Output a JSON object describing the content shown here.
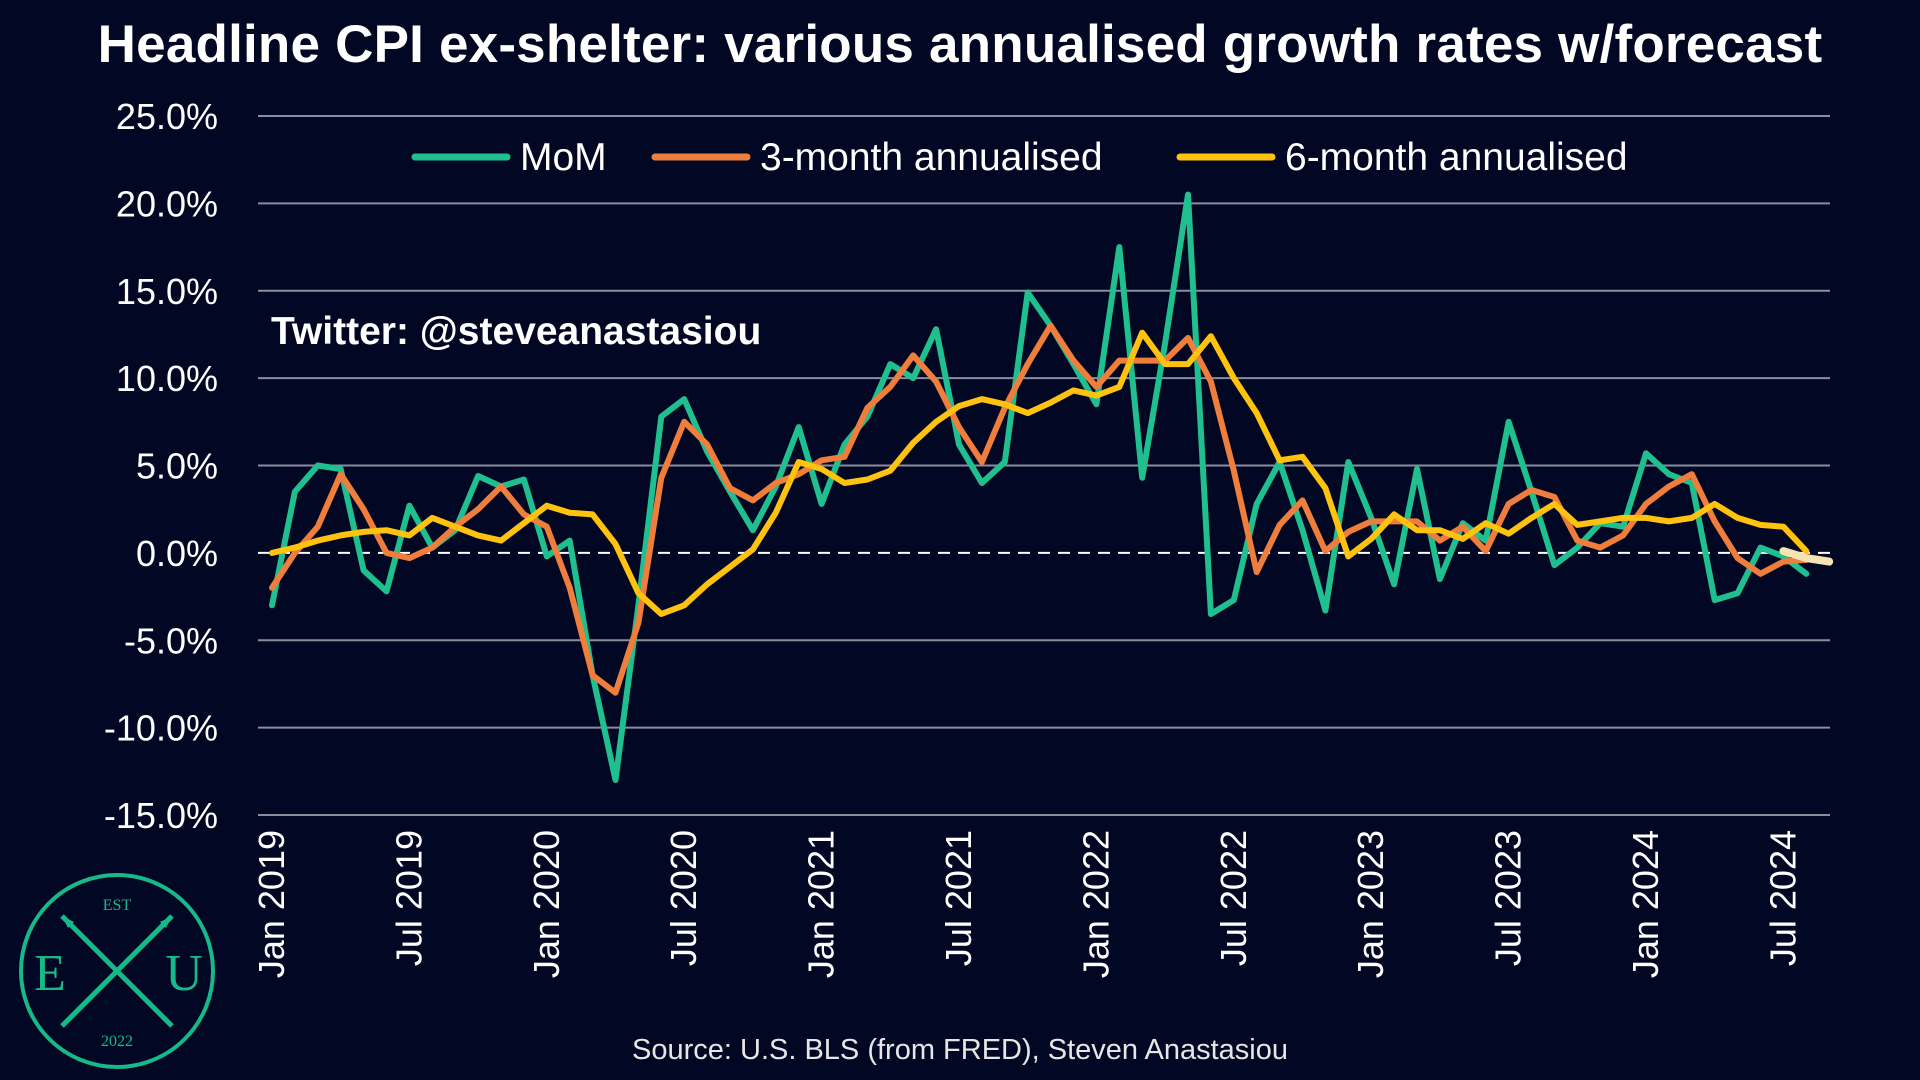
{
  "title": "Headline CPI ex-shelter: various annualised growth rates w/forecast",
  "twitter_handle": "Twitter: @steveanastasiou",
  "source": "Source: U.S. BLS (from FRED), Steven Anastasiou",
  "logo": {
    "top": "EST",
    "left": "E",
    "right": "U",
    "bottom": "2022"
  },
  "colors": {
    "background": "#020724",
    "grid": "#8a8d9c",
    "mom": "#1fbf8f",
    "m3": "#ef7d3c",
    "m6": "#ffc20e",
    "forecast": "#f6e3b4"
  },
  "chart_data": {
    "type": "line",
    "title": "Headline CPI ex-shelter: various annualised growth rates w/forecast",
    "xlabel": "",
    "ylabel": "",
    "ylim": [
      -15,
      25
    ],
    "y_ticks": [
      "25.0%",
      "20.0%",
      "15.0%",
      "10.0%",
      "5.0%",
      "0.0%",
      "-5.0%",
      "-10.0%",
      "-15.0%"
    ],
    "y_tick_values": [
      25,
      20,
      15,
      10,
      5,
      0,
      -5,
      -10,
      -15
    ],
    "x_ticks": [
      "Jan 2019",
      "Jul 2019",
      "Jan 2020",
      "Jul 2020",
      "Jan 2021",
      "Jul 2021",
      "Jan 2022",
      "Jul 2022",
      "Jan 2023",
      "Jul 2023",
      "Jan 2024",
      "Jul 2024"
    ],
    "x_start": "Jan 2019",
    "forecast_from": "Oct 2024",
    "grid": true,
    "zero_line": "dashed",
    "legend_position": "top-center",
    "series": [
      {
        "name": "MoM",
        "key": "mom",
        "values": [
          -3.0,
          3.5,
          5.0,
          4.8,
          -1.0,
          -2.2,
          2.7,
          0.3,
          1.3,
          4.4,
          3.8,
          4.2,
          -0.2,
          0.7,
          -7.0,
          -13.0,
          -3.0,
          7.8,
          8.8,
          5.8,
          3.5,
          1.3,
          3.8,
          7.2,
          2.8,
          6.2,
          7.8,
          10.8,
          10.0,
          12.8,
          6.2,
          4.0,
          5.2,
          14.9,
          13.0,
          10.8,
          8.5,
          17.5,
          4.3,
          12.0,
          20.5,
          -3.5,
          -2.7,
          2.8,
          5.2,
          1.3,
          -3.3,
          5.2,
          2.0,
          -1.8,
          4.8,
          -1.5,
          1.7,
          0.7,
          7.5,
          3.5,
          -0.7,
          0.3,
          1.7,
          1.5,
          5.7,
          4.5,
          4.0,
          -2.7,
          -2.3,
          0.3,
          -0.2,
          -1.2
        ]
      },
      {
        "name": "3-month annualised",
        "key": "m3",
        "values": [
          -2.0,
          0.0,
          1.5,
          4.5,
          2.5,
          0.0,
          -0.3,
          0.3,
          1.5,
          2.5,
          3.8,
          2.2,
          1.5,
          -2.0,
          -7.0,
          -8.0,
          -4.0,
          4.3,
          7.5,
          6.2,
          3.7,
          3.0,
          4.0,
          4.5,
          5.3,
          5.5,
          8.3,
          9.5,
          11.3,
          9.8,
          7.2,
          5.2,
          8.3,
          10.8,
          13.0,
          11.0,
          9.5,
          11.0,
          11.0,
          11.0,
          12.3,
          9.8,
          4.7,
          -1.1,
          1.6,
          3.0,
          0.1,
          1.2,
          1.8,
          1.8,
          1.8,
          0.7,
          1.5,
          0.1,
          2.8,
          3.6,
          3.2,
          0.7,
          0.3,
          1.0,
          2.8,
          3.8,
          4.5,
          1.8,
          -0.3,
          -1.2,
          -0.5,
          -0.4
        ]
      },
      {
        "name": "6-month annualised",
        "key": "m6",
        "values": [
          0.0,
          0.3,
          0.7,
          1.0,
          1.2,
          1.3,
          1.0,
          2.0,
          1.5,
          1.0,
          0.7,
          1.7,
          2.7,
          2.3,
          2.2,
          0.5,
          -2.3,
          -3.5,
          -3.0,
          -1.8,
          -0.8,
          0.2,
          2.3,
          5.2,
          4.8,
          4.0,
          4.2,
          4.7,
          6.3,
          7.5,
          8.4,
          8.8,
          8.5,
          8.0,
          8.6,
          9.3,
          9.0,
          9.5,
          12.6,
          10.8,
          10.8,
          12.4,
          10.0,
          8.0,
          5.3,
          5.5,
          3.7,
          -0.2,
          0.8,
          2.2,
          1.3,
          1.3,
          0.8,
          1.7,
          1.1,
          2.0,
          2.8,
          1.6,
          1.8,
          2.0,
          2.0,
          1.8,
          2.0,
          2.8,
          2.0,
          1.6,
          1.5,
          0.1
        ]
      },
      {
        "name": "",
        "key": "forecast",
        "forecast": true,
        "x_index": [
          66,
          67,
          68
        ],
        "values": [
          0.1,
          -0.3,
          -0.5
        ]
      }
    ]
  }
}
